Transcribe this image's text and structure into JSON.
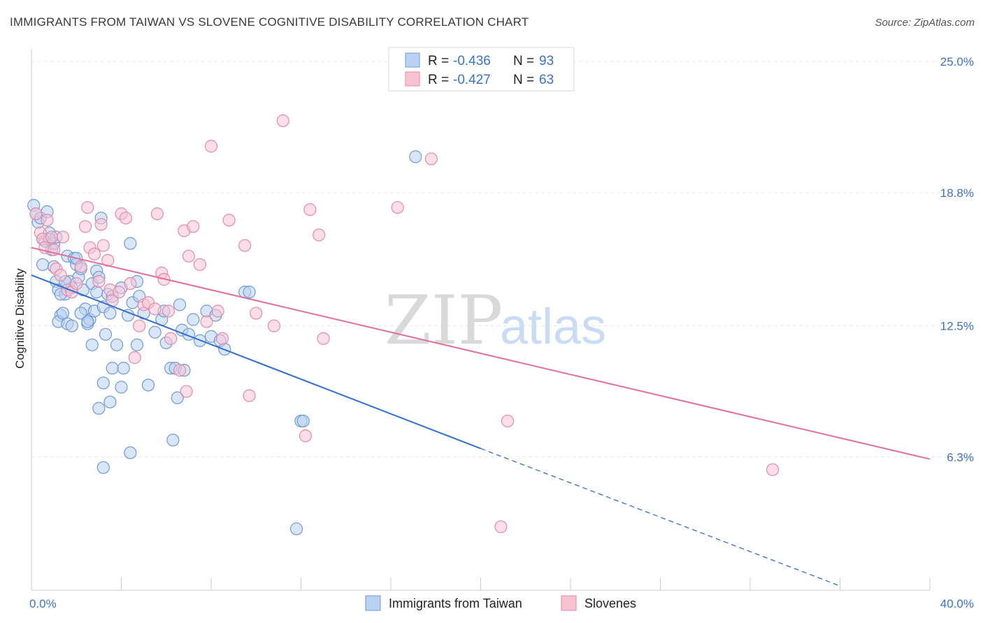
{
  "title": "IMMIGRANTS FROM TAIWAN VS SLOVENE COGNITIVE DISABILITY CORRELATION CHART",
  "source": "Source: ZipAtlas.com",
  "watermark": {
    "zip": "ZIP",
    "atlas": "atlas"
  },
  "colors": {
    "taiwan_fill": "#b9d1f2",
    "taiwan_stroke": "#6e9ad8",
    "taiwan_line": "#2f6fcf",
    "slovene_fill": "#f7c3d3",
    "slovene_stroke": "#e58aa8",
    "slovene_line": "#e07098",
    "grid": "#e6e6e6",
    "axis_text": "#3a73c8"
  },
  "legend": {
    "rows": [
      {
        "r_label": "R = ",
        "r_value": "-0.436",
        "n_label": "N = ",
        "n_value": "93"
      },
      {
        "r_label": "R = ",
        "r_value": "-0.427",
        "n_label": "N = ",
        "n_value": "63"
      }
    ]
  },
  "chart_data": {
    "type": "scatter",
    "title": "IMMIGRANTS FROM TAIWAN VS SLOVENE COGNITIVE DISABILITY CORRELATION CHART",
    "ylabel": "Cognitive Disability",
    "xlabel": "",
    "xlim": [
      0,
      40
    ],
    "ylim": [
      0,
      25.6
    ],
    "x_tick_labels": [
      "0.0%",
      "40.0%"
    ],
    "y_ticks": [
      6.3,
      12.5,
      18.8,
      25.0
    ],
    "y_tick_labels": [
      "6.3%",
      "12.5%",
      "18.8%",
      "25.0%"
    ],
    "grid": "horizontal dashed",
    "legend_position": "top-center",
    "series": [
      {
        "name": "Immigrants from Taiwan",
        "trend": {
          "x0": 0,
          "y0": 14.9,
          "x1": 20,
          "y1": 6.7,
          "dashed_to_x": 36,
          "dashed_to_y": 0.2
        },
        "points": [
          [
            0.1,
            18.2
          ],
          [
            0.2,
            17.8
          ],
          [
            0.3,
            17.4
          ],
          [
            0.4,
            17.6
          ],
          [
            0.5,
            16.6
          ],
          [
            0.6,
            16.5
          ],
          [
            0.7,
            17.9
          ],
          [
            0.8,
            16.9
          ],
          [
            0.9,
            16.1
          ],
          [
            1.0,
            16.4
          ],
          [
            1.1,
            16.7
          ],
          [
            0.5,
            15.4
          ],
          [
            1.0,
            15.3
          ],
          [
            1.1,
            14.6
          ],
          [
            1.2,
            14.2
          ],
          [
            1.3,
            13.0
          ],
          [
            1.2,
            12.7
          ],
          [
            1.4,
            13.1
          ],
          [
            1.5,
            14.0
          ],
          [
            1.6,
            15.8
          ],
          [
            1.7,
            14.6
          ],
          [
            1.8,
            14.3
          ],
          [
            1.9,
            15.7
          ],
          [
            2.0,
            15.4
          ],
          [
            1.6,
            12.6
          ],
          [
            2.1,
            14.8
          ],
          [
            2.2,
            15.2
          ],
          [
            2.3,
            14.2
          ],
          [
            2.4,
            13.3
          ],
          [
            2.5,
            12.6
          ],
          [
            2.6,
            12.8
          ],
          [
            2.7,
            14.5
          ],
          [
            2.8,
            13.2
          ],
          [
            2.9,
            15.1
          ],
          [
            3.0,
            14.8
          ],
          [
            3.1,
            17.6
          ],
          [
            3.2,
            13.4
          ],
          [
            3.3,
            12.1
          ],
          [
            3.4,
            14.0
          ],
          [
            3.5,
            13.1
          ],
          [
            2.7,
            11.6
          ],
          [
            3.6,
            10.5
          ],
          [
            3.8,
            11.6
          ],
          [
            4.0,
            14.3
          ],
          [
            4.1,
            10.5
          ],
          [
            4.3,
            13.0
          ],
          [
            4.4,
            16.4
          ],
          [
            4.5,
            13.6
          ],
          [
            4.7,
            11.6
          ],
          [
            4.8,
            13.9
          ],
          [
            5.0,
            13.1
          ],
          [
            5.2,
            9.7
          ],
          [
            3.2,
            9.8
          ],
          [
            3.5,
            8.9
          ],
          [
            3.0,
            8.6
          ],
          [
            4.0,
            9.6
          ],
          [
            5.5,
            12.2
          ],
          [
            5.8,
            12.8
          ],
          [
            6.0,
            11.7
          ],
          [
            6.2,
            10.5
          ],
          [
            6.4,
            10.5
          ],
          [
            6.5,
            9.1
          ],
          [
            6.6,
            13.5
          ],
          [
            6.7,
            12.3
          ],
          [
            6.8,
            10.4
          ],
          [
            7.0,
            12.1
          ],
          [
            7.2,
            12.8
          ],
          [
            6.3,
            7.1
          ],
          [
            7.5,
            11.8
          ],
          [
            7.8,
            13.2
          ],
          [
            8.0,
            12.0
          ],
          [
            8.2,
            13.0
          ],
          [
            8.4,
            11.8
          ],
          [
            8.6,
            11.4
          ],
          [
            9.5,
            14.1
          ],
          [
            9.7,
            14.1
          ],
          [
            12.0,
            8.0
          ],
          [
            12.1,
            8.0
          ],
          [
            11.8,
            2.9
          ],
          [
            17.1,
            20.5
          ],
          [
            3.2,
            5.8
          ],
          [
            4.4,
            6.5
          ],
          [
            2.0,
            15.7
          ],
          [
            1.8,
            12.5
          ],
          [
            2.2,
            13.1
          ],
          [
            1.5,
            14.6
          ],
          [
            2.9,
            14.1
          ],
          [
            3.6,
            13.9
          ],
          [
            0.8,
            16.6
          ],
          [
            1.3,
            14.0
          ],
          [
            2.5,
            12.7
          ],
          [
            4.7,
            14.6
          ],
          [
            5.9,
            13.2
          ]
        ]
      },
      {
        "name": "Slovenes",
        "trend": {
          "x0": 0,
          "y0": 16.2,
          "x1": 40,
          "y1": 6.2
        },
        "points": [
          [
            0.2,
            17.8
          ],
          [
            0.4,
            16.9
          ],
          [
            0.5,
            16.6
          ],
          [
            0.6,
            16.2
          ],
          [
            0.7,
            17.5
          ],
          [
            0.9,
            16.7
          ],
          [
            1.1,
            15.2
          ],
          [
            1.3,
            14.9
          ],
          [
            1.4,
            16.7
          ],
          [
            1.6,
            14.2
          ],
          [
            1.8,
            14.1
          ],
          [
            2.0,
            14.5
          ],
          [
            2.2,
            15.3
          ],
          [
            2.4,
            17.2
          ],
          [
            2.5,
            18.1
          ],
          [
            2.6,
            16.2
          ],
          [
            2.8,
            15.9
          ],
          [
            3.0,
            14.6
          ],
          [
            3.1,
            17.3
          ],
          [
            3.2,
            16.3
          ],
          [
            3.4,
            15.6
          ],
          [
            3.5,
            14.2
          ],
          [
            3.6,
            13.7
          ],
          [
            3.9,
            14.1
          ],
          [
            4.0,
            17.8
          ],
          [
            4.2,
            17.6
          ],
          [
            4.4,
            14.5
          ],
          [
            4.6,
            11.0
          ],
          [
            4.8,
            12.5
          ],
          [
            5.0,
            13.5
          ],
          [
            5.2,
            13.6
          ],
          [
            5.5,
            13.3
          ],
          [
            5.6,
            17.8
          ],
          [
            5.8,
            15.0
          ],
          [
            5.9,
            14.7
          ],
          [
            6.1,
            13.2
          ],
          [
            6.2,
            11.9
          ],
          [
            6.6,
            10.4
          ],
          [
            6.8,
            17.0
          ],
          [
            7.0,
            15.8
          ],
          [
            7.2,
            17.2
          ],
          [
            7.5,
            15.4
          ],
          [
            7.8,
            12.7
          ],
          [
            8.0,
            21.0
          ],
          [
            8.3,
            13.2
          ],
          [
            8.5,
            11.9
          ],
          [
            8.8,
            17.5
          ],
          [
            9.5,
            16.3
          ],
          [
            9.7,
            9.2
          ],
          [
            10.0,
            13.1
          ],
          [
            10.8,
            12.5
          ],
          [
            11.2,
            22.2
          ],
          [
            12.2,
            7.3
          ],
          [
            12.4,
            18.0
          ],
          [
            12.8,
            16.8
          ],
          [
            13.0,
            11.9
          ],
          [
            16.3,
            18.1
          ],
          [
            17.8,
            20.4
          ],
          [
            21.2,
            8.0
          ],
          [
            20.9,
            3.0
          ],
          [
            33.0,
            5.7
          ],
          [
            6.9,
            9.4
          ],
          [
            1.0,
            16.1
          ]
        ]
      }
    ]
  },
  "bottom_legend": {
    "items": [
      {
        "label": "Immigrants from Taiwan"
      },
      {
        "label": "Slovenes"
      }
    ]
  }
}
